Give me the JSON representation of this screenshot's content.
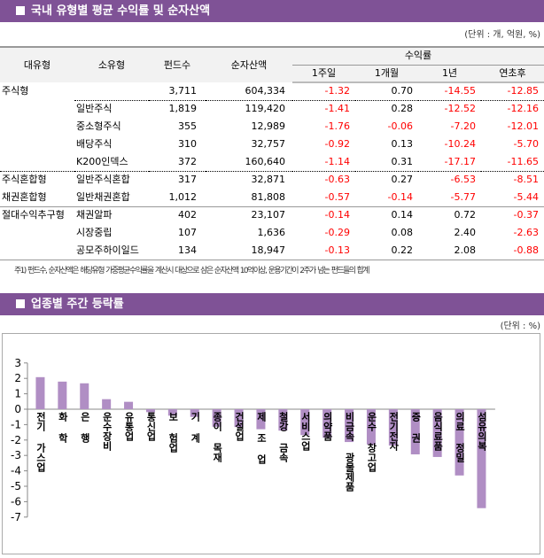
{
  "section1": {
    "title": "국내 유형별 평균 수익률 및 순자산액",
    "unit": "(단위 : 개, 억원, %)"
  },
  "table": {
    "headers": {
      "major": "대유형",
      "minor": "소유형",
      "funds": "펀드수",
      "assets": "순자산액",
      "returns": "수익률",
      "w1": "1주일",
      "m1": "1개월",
      "y1": "1년",
      "ytd": "연초후"
    },
    "rows": [
      {
        "major": "주식형",
        "minor": "",
        "funds": "3,711",
        "assets": "604,334",
        "w1": "-1.32",
        "m1": "0.70",
        "y1": "-14.55",
        "ytd": "-12.85"
      },
      {
        "major": "",
        "minor": "일반주식",
        "funds": "1,819",
        "assets": "119,420",
        "w1": "-1.41",
        "m1": "0.28",
        "y1": "-12.52",
        "ytd": "-12.16"
      },
      {
        "major": "",
        "minor": "중소형주식",
        "funds": "355",
        "assets": "12,989",
        "w1": "-1.76",
        "m1": "-0.06",
        "y1": "-7.20",
        "ytd": "-12.01"
      },
      {
        "major": "",
        "minor": "배당주식",
        "funds": "310",
        "assets": "32,757",
        "w1": "-0.92",
        "m1": "0.13",
        "y1": "-10.24",
        "ytd": "-5.70"
      },
      {
        "major": "",
        "minor": "K200인덱스",
        "funds": "372",
        "assets": "160,640",
        "w1": "-1.14",
        "m1": "0.31",
        "y1": "-17.17",
        "ytd": "-11.65"
      },
      {
        "major": "주식혼합형",
        "minor": "일반주식혼합",
        "funds": "317",
        "assets": "32,871",
        "w1": "-0.63",
        "m1": "0.27",
        "y1": "-6.53",
        "ytd": "-8.51"
      },
      {
        "major": "채권혼합형",
        "minor": "일반채권혼합",
        "funds": "1,012",
        "assets": "81,808",
        "w1": "-0.57",
        "m1": "-0.14",
        "y1": "-5.77",
        "ytd": "-5.44"
      },
      {
        "major": "절대수익추구형",
        "minor": "채권알파",
        "funds": "402",
        "assets": "23,107",
        "w1": "-0.14",
        "m1": "0.14",
        "y1": "0.72",
        "ytd": "-0.37"
      },
      {
        "major": "",
        "minor": "시장중립",
        "funds": "107",
        "assets": "1,636",
        "w1": "-0.29",
        "m1": "0.08",
        "y1": "2.40",
        "ytd": "-2.63"
      },
      {
        "major": "",
        "minor": "공모주하이일드",
        "funds": "134",
        "assets": "18,947",
        "w1": "-0.13",
        "m1": "0.22",
        "y1": "2.08",
        "ytd": "-0.88"
      }
    ]
  },
  "note": "주1) 펀드수, 순자산액은 해당유형 가중평균수익률을 계산시 대상으로 삼은 순자산액 10억이상, 운용기간이 2주가 넘는 펀드들의 합계",
  "section2": {
    "title": "업종별 주간 등락률",
    "unit": "(단위 : %)"
  },
  "colors": {
    "header": "#7f5296",
    "bar": "#b08ec4",
    "negative": "#ff0000"
  },
  "chart_data": {
    "type": "bar",
    "categories": [
      "전기 가스업",
      "화 학",
      "은 행",
      "운수장비",
      "유통업",
      "통신업",
      "보 험업",
      "기 계",
      "종이 목재",
      "건설업",
      "제 조 업",
      "철강 금속",
      "서비스업",
      "의약품",
      "비금속 광물제품",
      "운수 창고업",
      "전기전자",
      "증 권",
      "음식료품",
      "의료 정밀",
      "섬유의복"
    ],
    "values": [
      2.08,
      1.79,
      1.68,
      0.65,
      0.48,
      -0.19,
      -0.42,
      -0.5,
      -1.14,
      -1.16,
      -1.3,
      -1.39,
      -1.68,
      -1.85,
      -2.13,
      -2.29,
      -2.36,
      -2.93,
      -3.1,
      -4.3,
      -6.42
    ],
    "ylim": [
      -7,
      3
    ],
    "yticks": [
      "3",
      "2",
      "1",
      "0",
      "-1",
      "-2",
      "-3",
      "-4",
      "-5",
      "-6",
      "-7"
    ],
    "grid": false,
    "legend": "none"
  }
}
